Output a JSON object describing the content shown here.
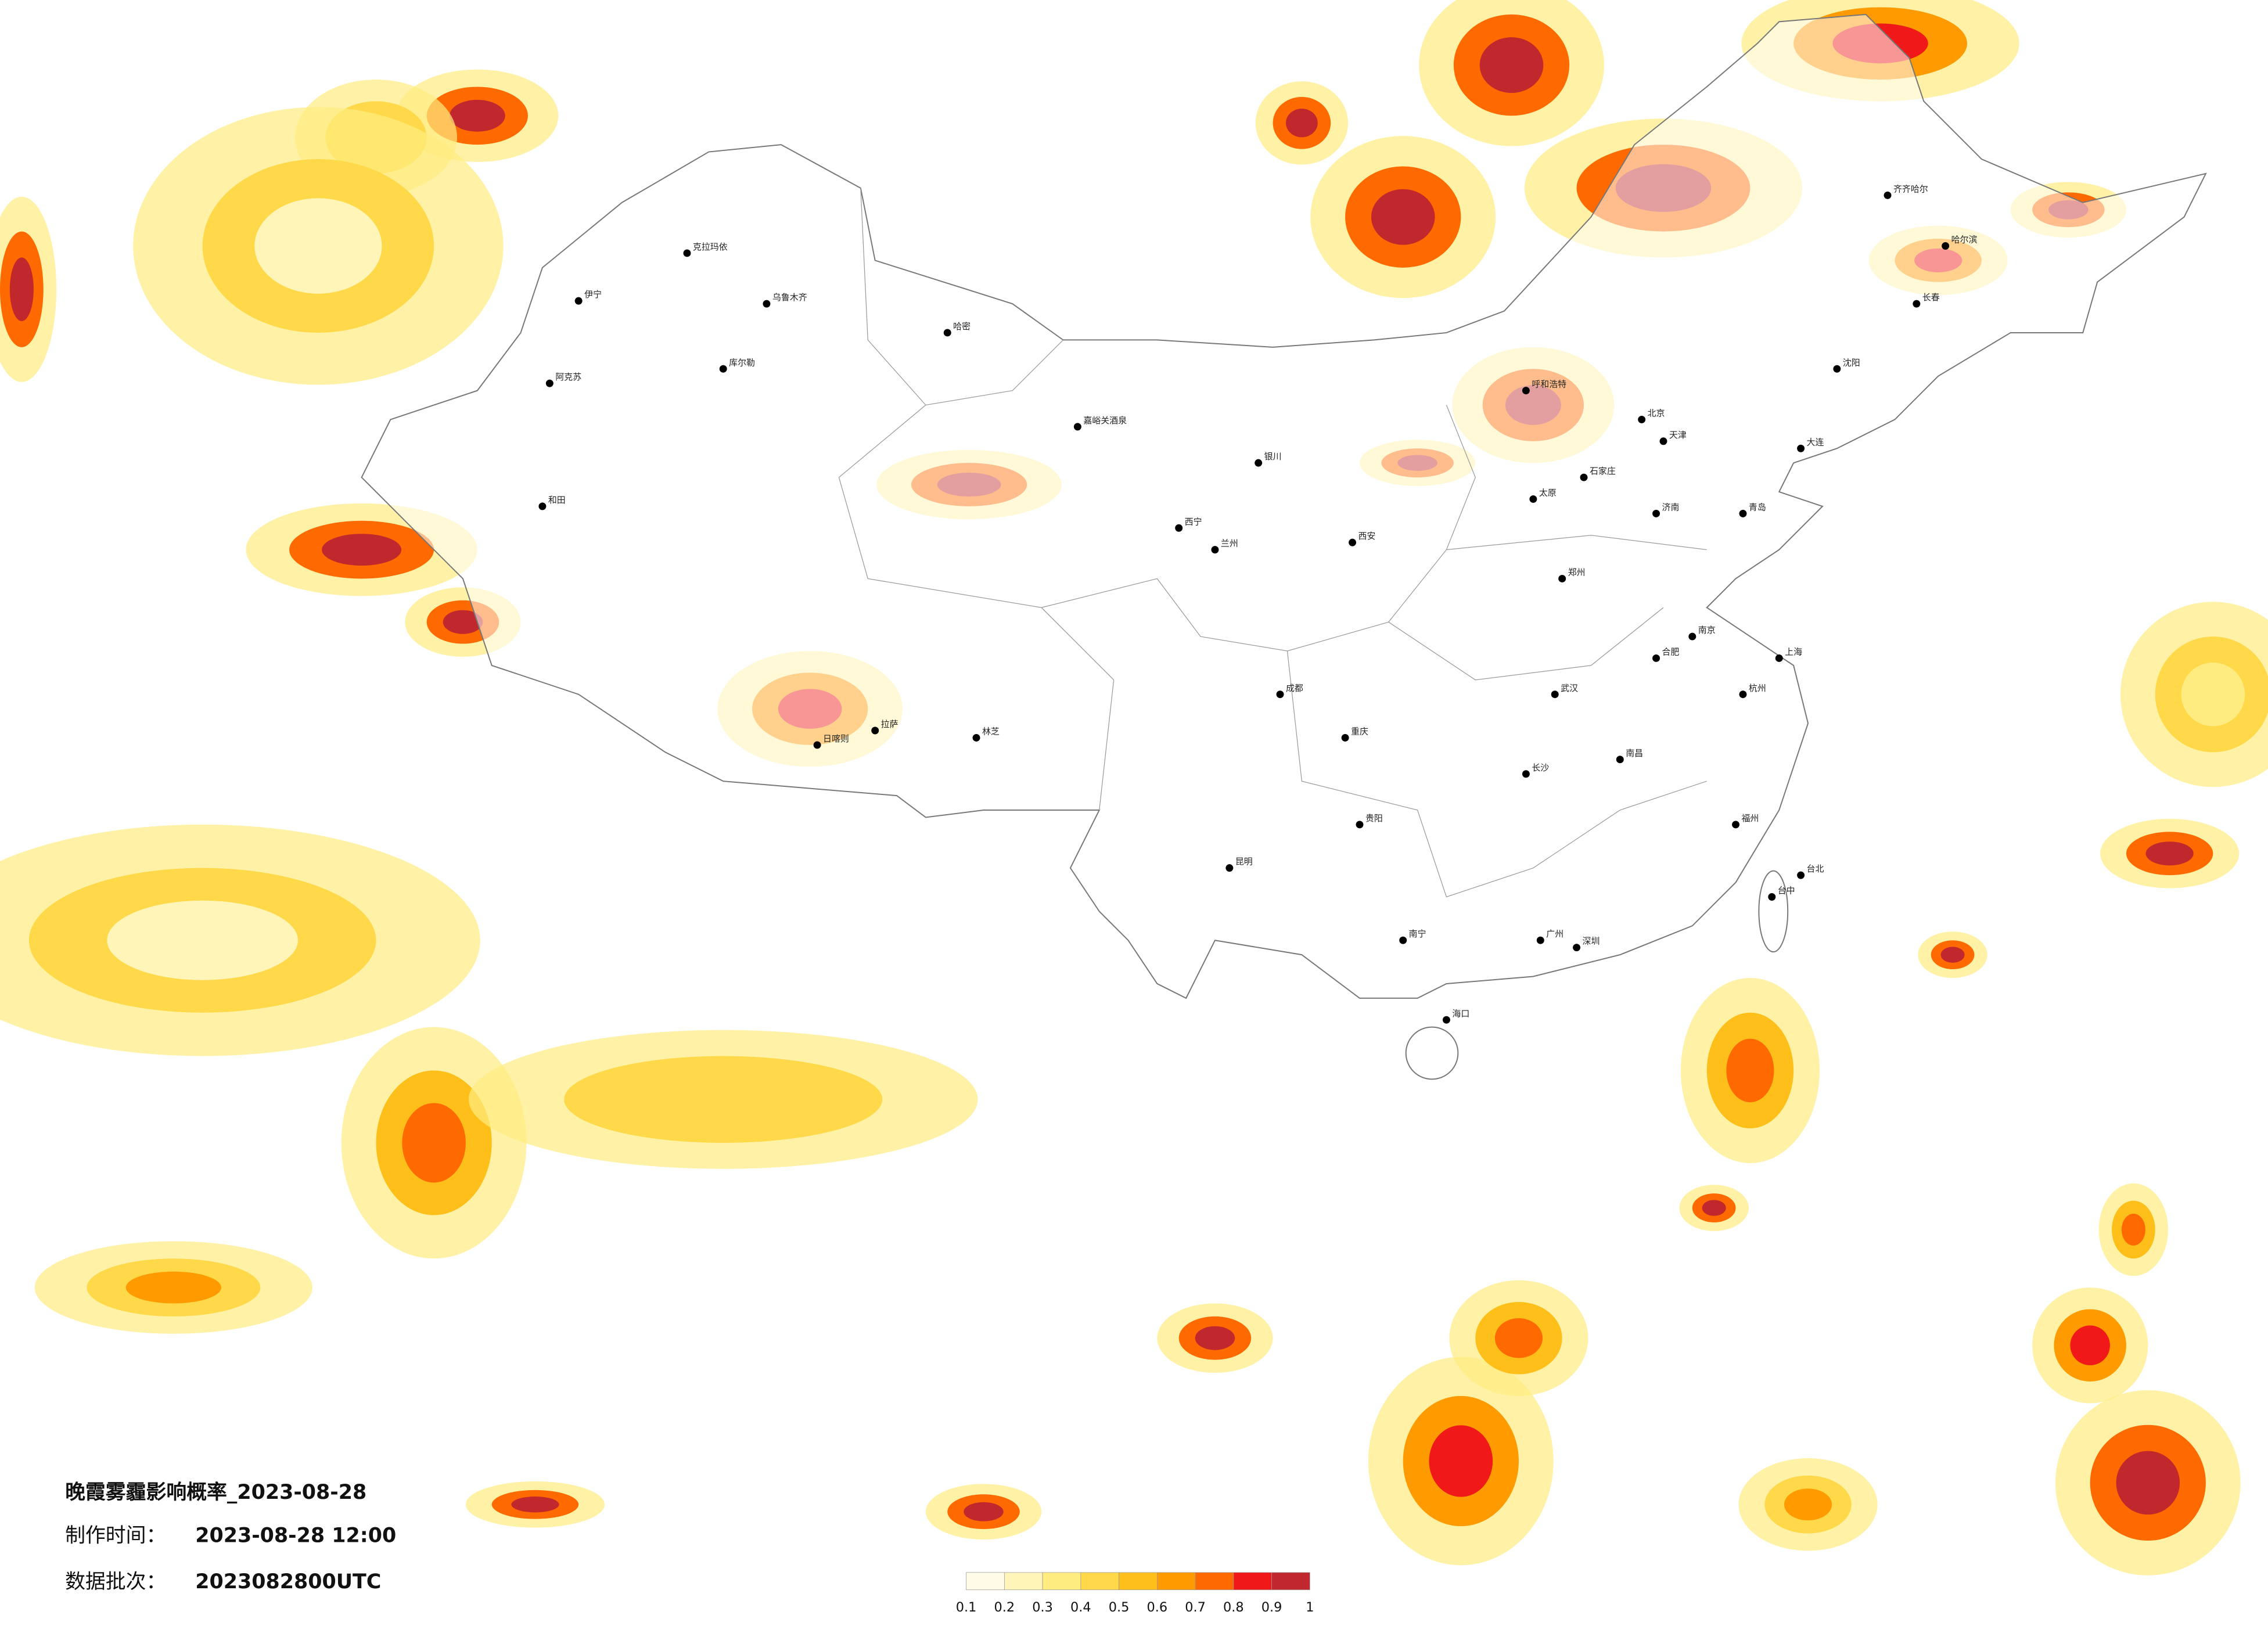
{
  "title": "晚霞雾霾影响概率_2023-08-28",
  "production_time": {
    "label": "制作时间：",
    "value": "2023-08-28 12:00"
  },
  "data_batch": {
    "label": "数据批次：",
    "value": "2023082800UTC"
  },
  "colorbar": {
    "ticks": [
      0.1,
      0.2,
      0.3,
      0.4,
      0.5,
      0.6,
      0.7,
      0.8,
      0.9,
      1
    ],
    "colors": [
      "#fffbe6",
      "#fff5b8",
      "#ffec80",
      "#ffd94a",
      "#ffbf1a",
      "#ff9a00",
      "#ff6a00",
      "#f01818",
      "#c0282e"
    ]
  },
  "cities": [
    "乌鲁木齐",
    "克拉玛依",
    "伊宁",
    "阿克苏",
    "库尔勒",
    "和田",
    "哈密",
    "嘉峪关酒泉",
    "西宁",
    "兰州",
    "银川",
    "呼和浩特",
    "北京",
    "天津",
    "石家庄",
    "太原",
    "西安",
    "郑州",
    "济南",
    "青岛",
    "南京",
    "上海",
    "杭州",
    "合肥",
    "武汉",
    "长沙",
    "南昌",
    "福州",
    "广州",
    "深圳",
    "南宁",
    "海口",
    "贵阳",
    "昆明",
    "成都",
    "重庆",
    "拉萨",
    "日喀则",
    "林芝",
    "哈尔滨",
    "长春",
    "沈阳",
    "大连",
    "齐齐哈尔",
    "台北",
    "台中"
  ]
}
